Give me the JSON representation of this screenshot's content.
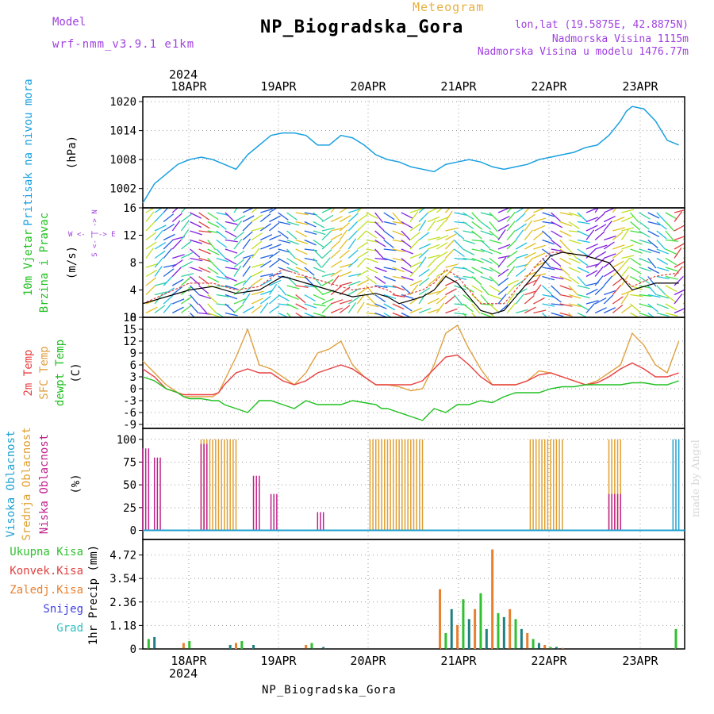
{
  "header": {
    "model_label": "Model",
    "model_name": "wrf-nmm_v3.9.1 e1km",
    "title": "NP_Biogradska_Gora",
    "meteogram_label": "Meteogram",
    "coords": "lon,lat (19.5875E, 42.8875N)",
    "elevation": "Nadmorska Visina 1115m",
    "model_elevation": "Nadmorska Visina u modelu 1476.77m"
  },
  "footer": {
    "location": "NP_Biogradska_Gora",
    "year_top": "2024",
    "year_bottom": "2024",
    "made_by": "made by Angel"
  },
  "axis_labels": {
    "pressure": {
      "label": "Pritisak na nivou mora",
      "unit": "(hPa)"
    },
    "wind": {
      "label1": "10m Vjetar",
      "label2": "Brzina i Pravac",
      "unit": "(m/s)",
      "compass": "W <- | -> E",
      "compass_v": "S <- | -> N"
    },
    "temp": {
      "label1": "2m Temp",
      "label2": "SFC Temp",
      "label3": "dewpt Temp",
      "unit": "(C)"
    },
    "cloud": {
      "label1": "Visoka Oblacnost",
      "label2": "Srednja Oblacnost",
      "label3": "Niska Oblacnost",
      "unit": "(%)"
    },
    "precip": {
      "unit": "1hr Precip (mm)"
    },
    "precip_legend": [
      "Ukupna Kisa",
      "Konvek.Kisa",
      "Zaledj.Kisa",
      "Snijeg",
      "Grad"
    ]
  },
  "colors": {
    "pressure": "#1aa0e0",
    "temp2m": "#e84040",
    "sfc": "#e0a040",
    "dew": "#20c020",
    "high": "#20a0d0",
    "mid": "#e0a030",
    "low": "#c0208c",
    "total": "#30c030",
    "conv": "#e04040",
    "frz": "#e88030",
    "snow": "#4040e0",
    "grad": "#30c0c0",
    "wind_speed": "#000000",
    "wind_gust": "#e04040"
  },
  "chart_data": [
    {
      "type": "line",
      "name": "pressure",
      "x_tick_labels": [
        "18APR",
        "19APR",
        "20APR",
        "21APR",
        "22APR",
        "23APR"
      ],
      "y_ticks": [
        1002,
        1008,
        1014,
        1020
      ],
      "ylim": [
        998,
        1021
      ],
      "x_hours": [
        0,
        4,
        8,
        12,
        16,
        20,
        24,
        28,
        32,
        36,
        40,
        42,
        44,
        48,
        52,
        56,
        60,
        64,
        68,
        72,
        76,
        80,
        84,
        88,
        92,
        96,
        100,
        104,
        108,
        112,
        116,
        120,
        124,
        128,
        132,
        136,
        140,
        144,
        148,
        150,
        152,
        156,
        160,
        164,
        166,
        168,
        172,
        176,
        180,
        184
      ],
      "values": [
        999,
        1003,
        1005,
        1007,
        1008,
        1008.5,
        1008,
        1007,
        1006,
        1009,
        1011,
        1012,
        1013,
        1013.5,
        1013.5,
        1013,
        1011,
        1011,
        1013,
        1012.5,
        1011,
        1009,
        1008,
        1007.5,
        1006.5,
        1006,
        1005.5,
        1007,
        1007.5,
        1008,
        1007.5,
        1006.5,
        1006,
        1006.5,
        1007,
        1008,
        1008.5,
        1009,
        1009.5,
        1010,
        1010.5,
        1011,
        1013,
        1016,
        1018,
        1019,
        1018.5,
        1016,
        1012,
        1011
      ]
    },
    {
      "type": "line",
      "name": "wind",
      "y_ticks": [
        0,
        4,
        8,
        12,
        16
      ],
      "ylim": [
        0,
        16
      ],
      "x_hours": [
        0,
        8,
        16,
        24,
        32,
        40,
        48,
        56,
        64,
        72,
        80,
        84,
        88,
        96,
        100,
        104,
        108,
        112,
        116,
        120,
        124,
        128,
        132,
        136,
        140,
        144,
        152,
        160,
        164,
        168,
        176,
        184
      ],
      "speed": [
        2,
        3,
        4,
        4.5,
        3.5,
        4,
        6,
        5,
        4,
        3,
        3.5,
        3,
        2,
        3,
        4,
        6,
        5,
        3,
        1,
        0.5,
        1,
        3,
        5,
        7,
        9,
        9.5,
        9,
        8,
        6,
        4,
        5,
        5
      ],
      "gust": [
        2,
        3.5,
        5,
        5,
        4,
        4.5,
        7,
        6,
        5,
        4,
        4.5,
        4,
        3,
        4,
        5,
        7,
        6,
        4,
        2,
        2,
        2,
        4,
        6,
        8,
        9.5,
        9.5,
        9,
        8,
        6,
        4.5,
        6,
        6.5
      ]
    },
    {
      "type": "line",
      "name": "temperature",
      "y_ticks": [
        -9,
        -6,
        -3,
        0,
        3,
        6,
        9,
        12,
        15,
        18
      ],
      "ylim": [
        -10,
        18
      ],
      "x_hours": [
        0,
        4,
        8,
        12,
        14,
        16,
        20,
        24,
        26,
        28,
        32,
        36,
        40,
        44,
        48,
        52,
        56,
        60,
        64,
        68,
        72,
        76,
        80,
        82,
        84,
        88,
        92,
        96,
        100,
        104,
        108,
        112,
        116,
        120,
        124,
        128,
        132,
        136,
        140,
        144,
        148,
        152,
        156,
        160,
        164,
        168,
        172,
        176,
        180,
        184
      ],
      "t2m": [
        5,
        3,
        0,
        -1,
        -1.5,
        -1.5,
        -1.5,
        -1.5,
        -1,
        1,
        4,
        5,
        4,
        4,
        2,
        1,
        2,
        4,
        5,
        6,
        5,
        3,
        1,
        1,
        1,
        1,
        1,
        2,
        5,
        8,
        8.5,
        6,
        3,
        1,
        1,
        1,
        2,
        3.5,
        4,
        3,
        2,
        1,
        1.5,
        3,
        5,
        6.5,
        5,
        3,
        3,
        4
      ],
      "sfc": [
        7,
        4,
        1,
        -1,
        -2,
        -2,
        -2,
        -2,
        -1,
        2,
        8,
        15,
        6,
        5,
        3,
        1,
        4,
        9,
        10,
        12,
        6,
        3,
        1,
        1,
        1,
        0.5,
        -0.5,
        0,
        6,
        14,
        16,
        10,
        5,
        1,
        1,
        1,
        2,
        4.5,
        4,
        3,
        2,
        1,
        2,
        4,
        6,
        14,
        11,
        6,
        4,
        12
      ],
      "dew": [
        3,
        2,
        0,
        -1,
        -2,
        -2.5,
        -2.5,
        -3,
        -3,
        -4,
        -5,
        -6,
        -3,
        -3,
        -4,
        -5,
        -3,
        -4,
        -4,
        -4,
        -3,
        -3.5,
        -4,
        -5,
        -5,
        -6,
        -7,
        -8,
        -5,
        -6,
        -4,
        -4,
        -3,
        -3.5,
        -2,
        -1,
        -1,
        -1,
        0,
        0.5,
        0.5,
        1,
        1,
        1,
        1,
        1.5,
        1.5,
        1,
        1,
        2
      ]
    },
    {
      "type": "bar",
      "name": "cloud",
      "y_ticks": [
        0,
        25,
        50,
        75,
        100
      ],
      "ylim": [
        0,
        100
      ],
      "series": [
        {
          "name": "Srednja Oblacnost",
          "segments": [
            [
              20,
              32,
              100
            ],
            [
              78,
              96,
              100
            ],
            [
              133,
              144,
              100
            ],
            [
              160,
              164,
              100
            ]
          ]
        },
        {
          "name": "Niska Oblacnost",
          "segments": [
            [
              0,
              2,
              90
            ],
            [
              4,
              6,
              80
            ],
            [
              20,
              22,
              95
            ],
            [
              38,
              40,
              60
            ],
            [
              44,
              46,
              40
            ],
            [
              60,
              62,
              20
            ],
            [
              160,
              164,
              40
            ]
          ]
        },
        {
          "name": "Visoka Oblacnost",
          "segments": [
            [
              182,
              184,
              100
            ]
          ]
        }
      ]
    },
    {
      "type": "bar",
      "name": "precip",
      "y_ticks": [
        0,
        1.18,
        2.36,
        3.54,
        4.72
      ],
      "ylim": [
        0,
        5.5
      ],
      "x_hours": [
        2,
        4,
        14,
        16,
        30,
        32,
        34,
        38,
        56,
        58,
        62,
        102,
        104,
        106,
        108,
        110,
        112,
        114,
        116,
        118,
        120,
        122,
        124,
        126,
        128,
        130,
        132,
        134,
        136,
        138,
        140,
        142,
        144,
        183
      ],
      "values": [
        0.5,
        0.6,
        0.3,
        0.4,
        0.2,
        0.3,
        0.4,
        0.2,
        0.2,
        0.3,
        0.1,
        3.0,
        0.8,
        2.0,
        1.2,
        2.5,
        1.5,
        2.0,
        2.8,
        1.0,
        5.0,
        1.8,
        1.6,
        2.0,
        1.5,
        1.0,
        0.8,
        0.5,
        0.3,
        0.2,
        0.1,
        0.1,
        0.05,
        1.0
      ]
    }
  ]
}
